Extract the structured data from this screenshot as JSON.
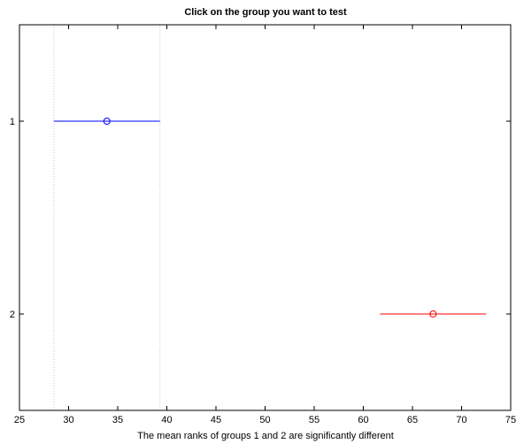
{
  "chart_data": {
    "type": "interval",
    "title": "Click on the group you want to test",
    "xlabel": "The mean ranks of groups 1 and 2 are significantly different",
    "ylabel": "",
    "xlim": [
      25,
      75
    ],
    "ylim": [
      0.5,
      2.5
    ],
    "y_reversed": true,
    "xticks": [
      25,
      30,
      35,
      40,
      45,
      50,
      55,
      60,
      65,
      70,
      75
    ],
    "yticks": [
      1,
      2
    ],
    "groups": [
      {
        "label": "1",
        "y": 1,
        "mean": 33.9,
        "lower": 28.5,
        "upper": 39.3,
        "color": "#0000ff"
      },
      {
        "label": "2",
        "y": 2,
        "mean": 67.1,
        "lower": 61.7,
        "upper": 72.5,
        "color": "#ff0000"
      }
    ],
    "reference_lines": [
      28.5,
      39.3
    ],
    "reference_color": "#c8c8c8",
    "grid": false,
    "legend": "none"
  }
}
